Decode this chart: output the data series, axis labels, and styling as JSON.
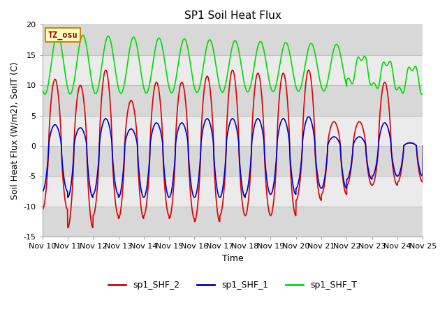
{
  "title": "SP1 Soil Heat Flux",
  "xlabel": "Time",
  "ylabel": "Soil Heat Flux (W/m2), SoilT (C)",
  "ylim": [
    -15,
    20
  ],
  "yticks": [
    -15,
    -10,
    -5,
    0,
    5,
    10,
    15,
    20
  ],
  "xtick_labels": [
    "Nov 10",
    "Nov 11",
    "Nov 12",
    "Nov 13",
    "Nov 14",
    "Nov 15",
    "Nov 16",
    "Nov 17",
    "Nov 18",
    "Nov 19",
    "Nov 20",
    "Nov 21",
    "Nov 22",
    "Nov 23",
    "Nov 24",
    "Nov 25"
  ],
  "tz_label": "TZ_osu",
  "color_shf2": "#dd0000",
  "color_shf1": "#0000cc",
  "color_shft": "#00dd00",
  "legend_labels": [
    "sp1_SHF_2",
    "sp1_SHF_1",
    "sp1_SHF_T"
  ],
  "background_color": "#ffffff",
  "plot_bg_color": "#ffffff",
  "band_color_dark": "#d8d8d8",
  "band_color_light": "#ebebeb",
  "gridline_color": "#c0c0c0",
  "title_fontsize": 11,
  "axis_label_fontsize": 9,
  "tick_fontsize": 8
}
